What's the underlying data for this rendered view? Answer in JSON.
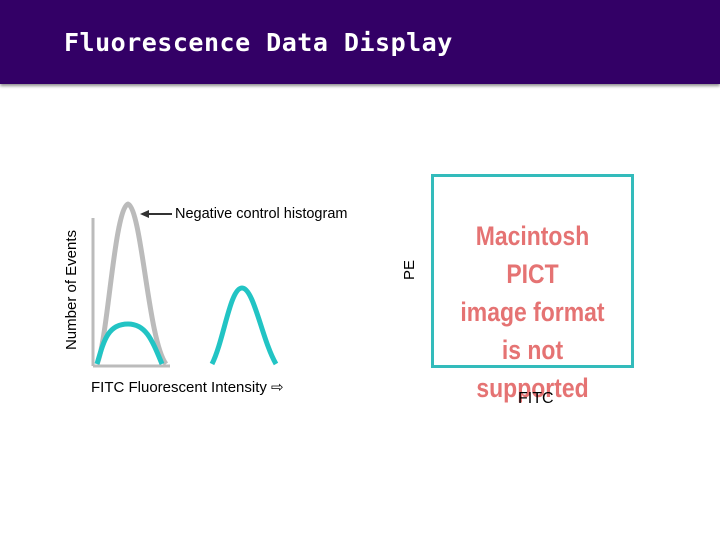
{
  "slide": {
    "title": "Fluorescence Data Display"
  },
  "histogram": {
    "ylabel": "Number of Events",
    "xlabel": "FITC Fluorescent Intensity ⇨",
    "annotation": "Negative control histogram",
    "colors": {
      "negative_control": "#bbbbbb",
      "stained": "#22c4c4",
      "axis": "#bbbbbb",
      "arrow": "#333333"
    }
  },
  "scatter": {
    "ylabel": "PE",
    "xlabel": "FITC",
    "placeholder_text": [
      "Macintosh PICT",
      "image format",
      "is not supported"
    ],
    "colors": {
      "border": "#33bbbb",
      "placeholder_text": "#e57373"
    }
  },
  "colors": {
    "header_bg": "#330066",
    "title": "#ffffff"
  }
}
